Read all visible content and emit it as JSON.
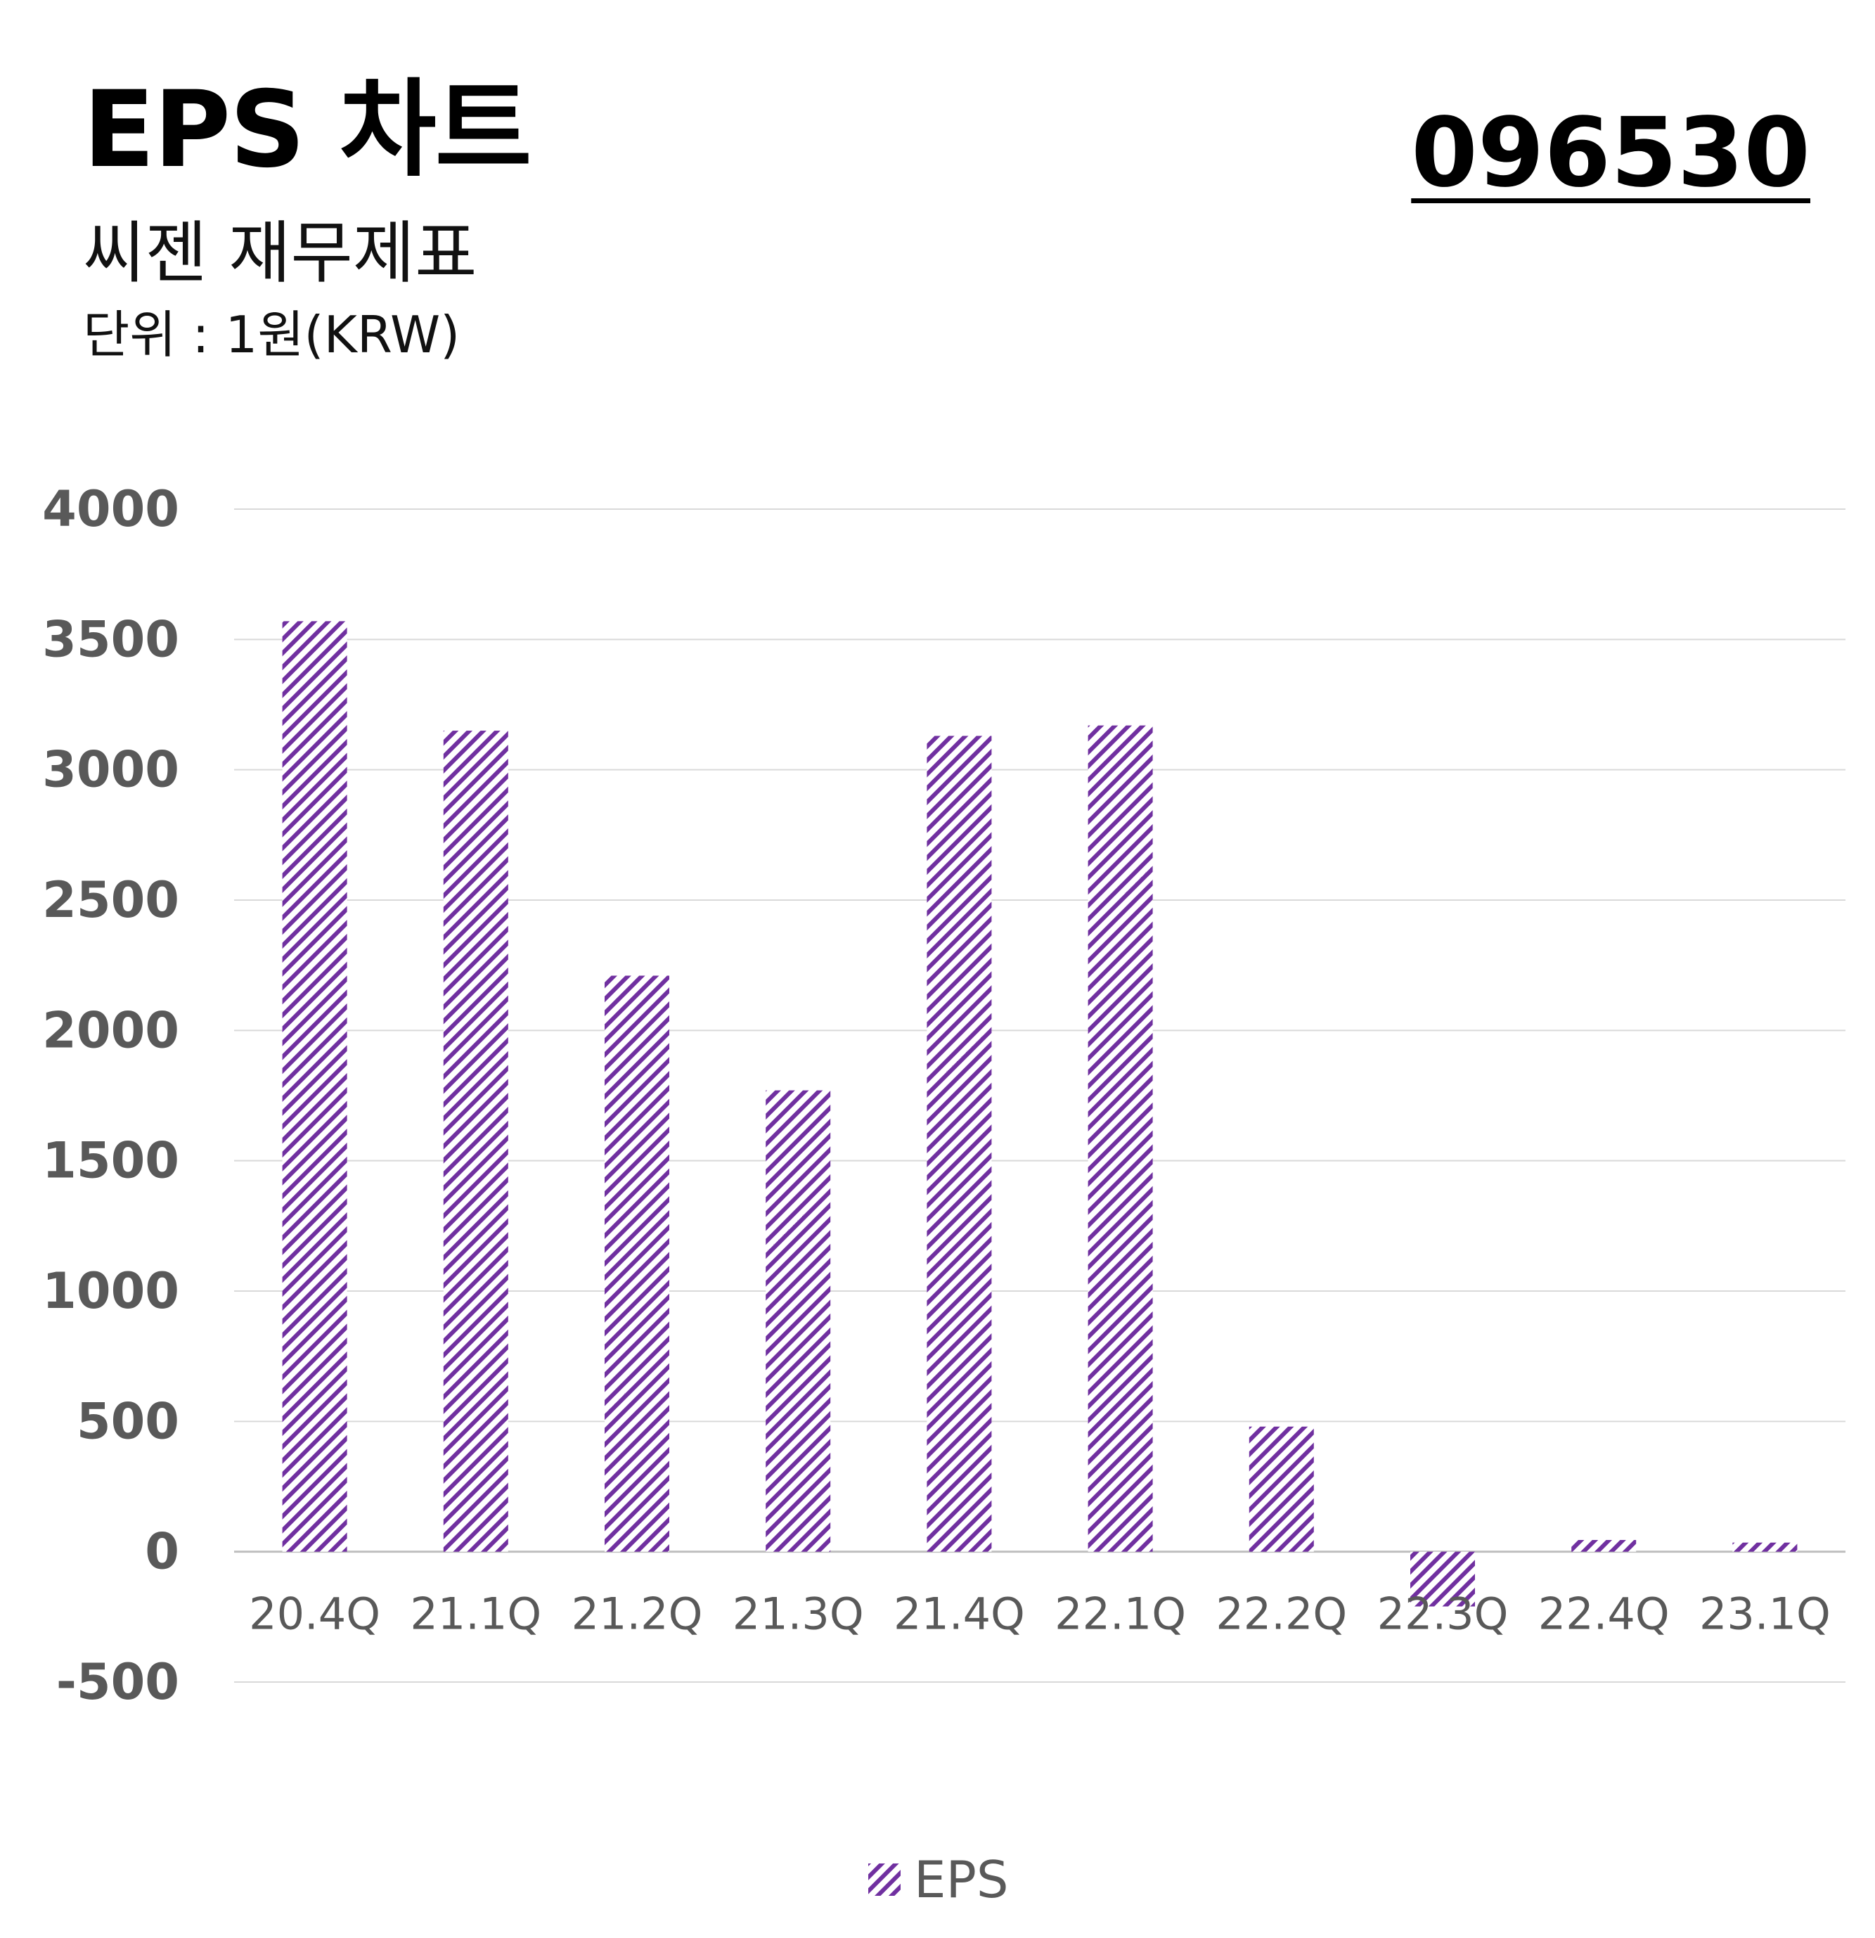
{
  "header": {
    "title": "EPS 차트",
    "subtitle": "씨젠 재무제표",
    "unit": "단위 : 1원(KRW)",
    "ticker": "096530"
  },
  "colors": {
    "bar_stripe": "#7030a0",
    "grid": "#d9d9d9",
    "tick_text": "#595959"
  },
  "chart_data": {
    "type": "bar",
    "title": "EPS 차트",
    "categories": [
      "20.4Q",
      "21.1Q",
      "21.2Q",
      "21.3Q",
      "21.4Q",
      "22.1Q",
      "22.2Q",
      "22.3Q",
      "22.4Q",
      "23.1Q"
    ],
    "series": [
      {
        "name": "EPS",
        "values": [
          3570,
          3150,
          2210,
          1770,
          3130,
          3170,
          480,
          -210,
          45,
          35
        ]
      }
    ],
    "ylim": [
      -500,
      4000
    ],
    "yticks": [
      4000,
      3500,
      3000,
      2500,
      2000,
      1500,
      1000,
      500,
      0,
      -500
    ],
    "grid": true,
    "legend": "bottom-center",
    "bar_fill": "diagonal-hatch"
  }
}
